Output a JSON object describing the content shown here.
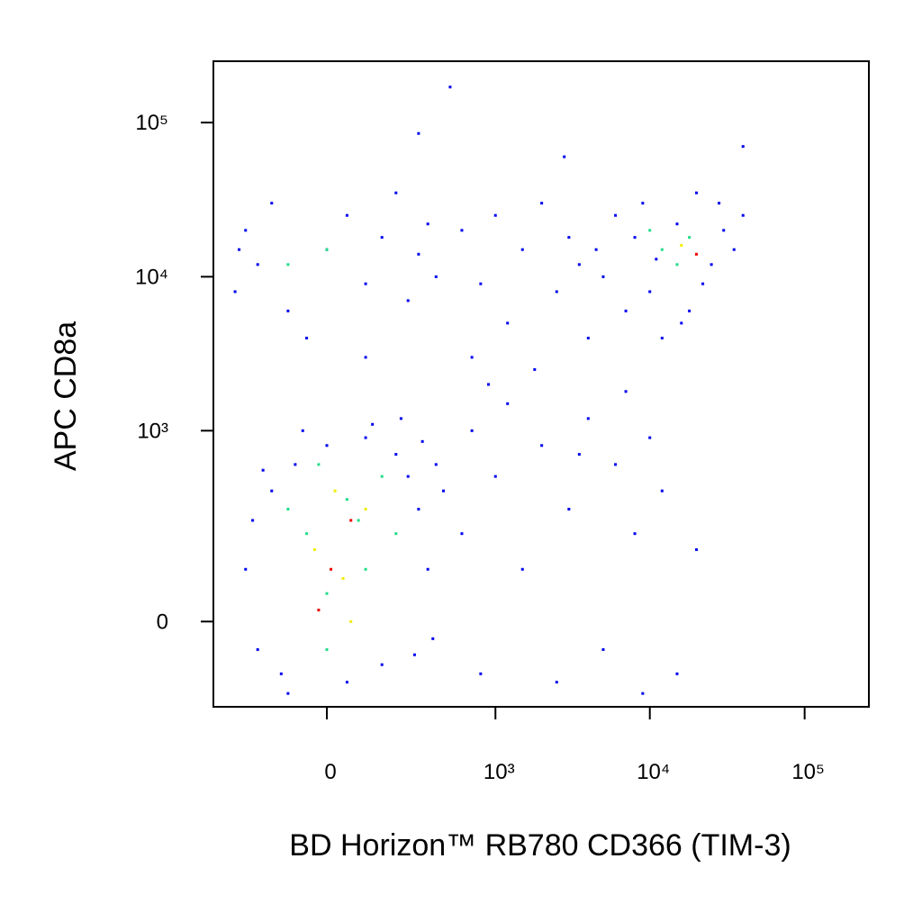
{
  "chart_data": {
    "type": "scatter",
    "xlabel": "BD Horizon™ RB780 CD366 (TIM-3)",
    "ylabel": "APC CD8a",
    "xscale": "biexponential",
    "yscale": "biexponential",
    "xlim": [
      -428,
      260000
    ],
    "ylim": [
      -191,
      250000
    ],
    "xticks": [
      0,
      {
        "value": 1000,
        "label": "10³"
      },
      {
        "value": 10000,
        "label": "10⁴"
      },
      {
        "value": 100000,
        "label": "10⁵"
      }
    ],
    "yticks": [
      0,
      {
        "value": 1000,
        "label": "10³"
      },
      {
        "value": 10000,
        "label": "10⁴"
      },
      {
        "value": 100000,
        "label": "10⁵"
      }
    ],
    "series": [
      {
        "color": "#0000ee",
        "x": [
          -250,
          -200,
          -150,
          -100,
          -80,
          0,
          50,
          100,
          150,
          200,
          250,
          300,
          350,
          400,
          -220,
          -180,
          120,
          280,
          320,
          -120,
          450,
          380,
          -60,
          220,
          -300,
          -250,
          -200,
          -150,
          -100,
          0,
          50,
          100,
          150,
          200,
          250,
          300,
          350,
          -50,
          400,
          100,
          -280,
          5000,
          6000,
          7000,
          8000,
          9000,
          10000,
          12000,
          15000,
          18000,
          20000,
          25000,
          30000,
          35000,
          40000,
          11000,
          22000,
          28000,
          16000,
          4500,
          600,
          800,
          1000,
          1200,
          1500,
          2000,
          2500,
          3000,
          3500,
          700,
          1800,
          4000,
          600,
          800,
          1000,
          1200,
          1500,
          2000,
          2500,
          3000,
          4000,
          5000,
          6000,
          8000,
          10000,
          12000,
          15000,
          20000,
          700,
          900,
          3500,
          7000,
          9000,
          500,
          2800,
          40000,
          300
        ],
        "y": [
          100,
          -50,
          400,
          -150,
          600,
          800,
          -120,
          900,
          -80,
          700,
          500,
          300,
          100,
          600,
          250,
          550,
          1100,
          -60,
          850,
          -100,
          400,
          -30,
          1000,
          1200,
          8000,
          20000,
          12000,
          30000,
          6000,
          15000,
          25000,
          9000,
          18000,
          35000,
          7000,
          14000,
          22000,
          4000,
          10000,
          3000,
          15000,
          10000,
          25000,
          6000,
          18000,
          30000,
          8000,
          4000,
          22000,
          6000,
          35000,
          12000,
          20000,
          15000,
          25000,
          13000,
          9000,
          30000,
          5000,
          15000,
          20000,
          9000,
          25000,
          5000,
          15000,
          30000,
          8000,
          18000,
          12000,
          3000,
          2500,
          4000,
          200,
          -100,
          500,
          1500,
          100,
          800,
          -120,
          300,
          1200,
          -50,
          600,
          200,
          900,
          400,
          -100,
          150,
          1000,
          2000,
          700,
          1800,
          -150,
          170000,
          60000,
          70000,
          85000
        ]
      },
      {
        "color": "#22dd88",
        "x": [
          -50,
          0,
          50,
          100,
          -100,
          150,
          0,
          80,
          200,
          -20,
          12000,
          15000,
          18000,
          10000,
          0,
          -100
        ],
        "y": [
          200,
          50,
          350,
          100,
          300,
          500,
          -50,
          250,
          200,
          600,
          15000,
          12000,
          18000,
          20000,
          15000,
          12000
        ]
      },
      {
        "color": "#eeee00",
        "x": [
          -30,
          40,
          100,
          20,
          60,
          16000
        ],
        "y": [
          150,
          80,
          300,
          400,
          0,
          16000
        ]
      },
      {
        "color": "#ee0000",
        "x": [
          10,
          60,
          -20,
          20000
        ],
        "y": [
          100,
          250,
          20,
          14000
        ]
      }
    ]
  }
}
